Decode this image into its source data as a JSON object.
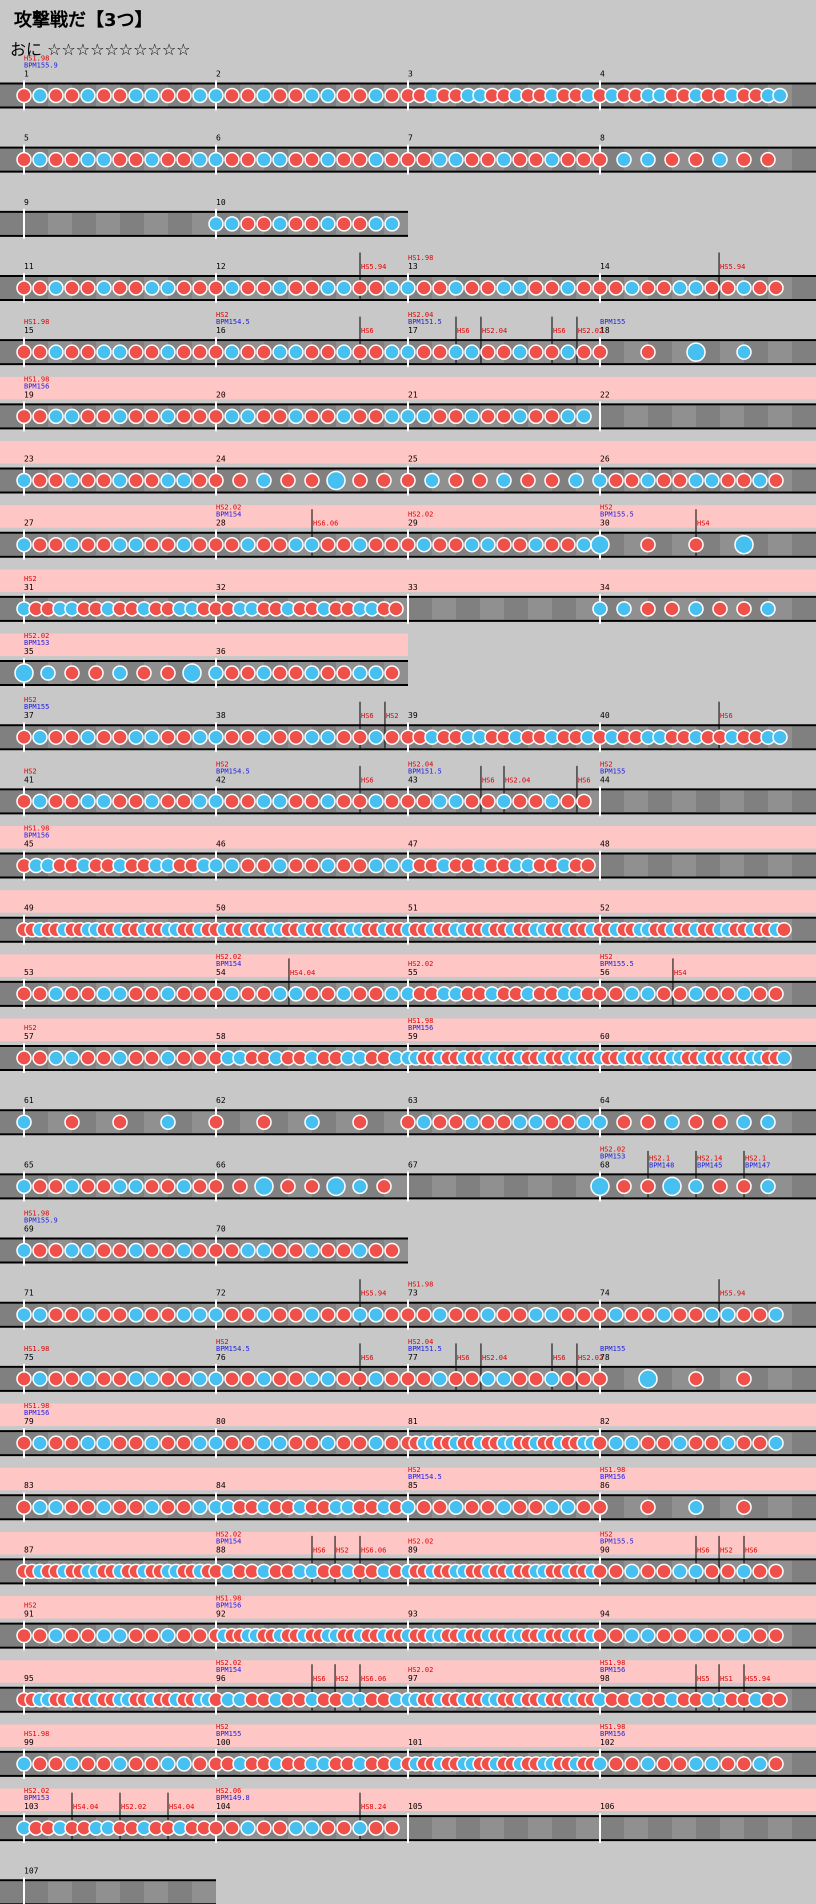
{
  "song": {
    "title": "攻撃戦だ【3つ】",
    "difficulty": "おに ☆☆☆☆☆☆☆☆☆☆"
  },
  "colors": {
    "background": "#c8c8c8",
    "lane": "#808080",
    "lane_cell": "#909090",
    "gogo": "#ffc6c6",
    "don": "#f0504a",
    "ka": "#46c0f0",
    "hs_text": "#e00000",
    "bpm_text": "#2020e0"
  },
  "rows": [
    {
      "bars": [
        1,
        2,
        3,
        4
      ],
      "gogo": false,
      "events": [
        {
          "bar": 1,
          "lines": [
            "HS1.98",
            "BPM155.9"
          ]
        }
      ],
      "dens": [
        6,
        6,
        8,
        8
      ]
    },
    {
      "bars": [
        5,
        6,
        7,
        8
      ],
      "gogo": false,
      "events": [],
      "dens": [
        6,
        7,
        7,
        5
      ]
    },
    {
      "bars": [
        9,
        10
      ],
      "gogo": false,
      "events": [],
      "dens": [
        0,
        6
      ]
    },
    {
      "bars": [
        11,
        12,
        13,
        14
      ],
      "gogo": false,
      "events": [
        {
          "bar": 12,
          "pos": 0.75,
          "lines": [
            "HS5.94"
          ]
        },
        {
          "bar": 13,
          "lines": [
            "HS1.98"
          ]
        },
        {
          "bar": 14,
          "pos": 0.62,
          "lines": [
            "HS5.94"
          ]
        }
      ],
      "dens": [
        6,
        6,
        6,
        6
      ]
    },
    {
      "bars": [
        15,
        16,
        17,
        18
      ],
      "gogo": false,
      "events": [
        {
          "bar": 15,
          "lines": [
            "HS1.98"
          ]
        },
        {
          "bar": 16,
          "lines": [
            "HS2",
            "BPM154.5"
          ]
        },
        {
          "bar": 16,
          "pos": 0.75,
          "lines": [
            "HS6"
          ]
        },
        {
          "bar": 17,
          "lines": [
            "HS2.04",
            "BPM151.5"
          ]
        },
        {
          "bar": 17,
          "pos": 0.25,
          "lines": [
            "HS6"
          ]
        },
        {
          "bar": 17,
          "pos": 0.38,
          "lines": [
            "HS2.04"
          ]
        },
        {
          "bar": 17,
          "pos": 0.75,
          "lines": [
            "HS6"
          ]
        },
        {
          "bar": 17,
          "pos": 0.88,
          "lines": [
            "HS2.02"
          ]
        },
        {
          "bar": 18,
          "lines": [
            "BPM155"
          ]
        }
      ],
      "dens": [
        6,
        6,
        6,
        1
      ]
    },
    {
      "bars": [
        19,
        20,
        21,
        22
      ],
      "gogo": true,
      "events": [
        {
          "bar": 19,
          "lines": [
            "HS1.98",
            "BPM156"
          ]
        }
      ],
      "dens": [
        6,
        6,
        6,
        0
      ]
    },
    {
      "bars": [
        23,
        24,
        25,
        26
      ],
      "gogo": true,
      "events": [],
      "dens": [
        6,
        4,
        5,
        6
      ]
    },
    {
      "bars": [
        27,
        28,
        29,
        30
      ],
      "gogo": true,
      "events": [
        {
          "bar": 28,
          "lines": [
            "HS2.02",
            "BPM154"
          ]
        },
        {
          "bar": 28,
          "pos": 0.5,
          "lines": [
            "HS6.06"
          ]
        },
        {
          "bar": 29,
          "lines": [
            "HS2.02"
          ]
        },
        {
          "bar": 30,
          "lines": [
            "HS2",
            "BPM155.5"
          ]
        },
        {
          "bar": 30,
          "pos": 0.5,
          "lines": [
            "HS4"
          ]
        }
      ],
      "dens": [
        6,
        6,
        6,
        3
      ]
    },
    {
      "bars": [
        31,
        32,
        33,
        34
      ],
      "gogo": true,
      "events": [
        {
          "bar": 31,
          "lines": [
            "HS2"
          ]
        }
      ],
      "dens": [
        8,
        8,
        0,
        5
      ]
    },
    {
      "bars": [
        35,
        36
      ],
      "gogo": true,
      "events": [
        {
          "bar": 35,
          "lines": [
            "HS2.02",
            "BPM153"
          ]
        }
      ],
      "dens": [
        4,
        6
      ]
    },
    {
      "bars": [
        37,
        38,
        39,
        40
      ],
      "gogo": false,
      "events": [
        {
          "bar": 37,
          "lines": [
            "HS2",
            "BPM155"
          ]
        },
        {
          "bar": 38,
          "pos": 0.75,
          "lines": [
            "HS6"
          ]
        },
        {
          "bar": 38,
          "pos": 0.88,
          "lines": [
            "HS2"
          ]
        },
        {
          "bar": 40,
          "pos": 0.62,
          "lines": [
            "HS6"
          ]
        }
      ],
      "dens": [
        6,
        6,
        8,
        8
      ]
    },
    {
      "bars": [
        41,
        42,
        43,
        44
      ],
      "gogo": false,
      "events": [
        {
          "bar": 41,
          "lines": [
            "HS2"
          ]
        },
        {
          "bar": 42,
          "lines": [
            "HS2",
            "BPM154.5"
          ]
        },
        {
          "bar": 42,
          "pos": 0.75,
          "lines": [
            "HS6"
          ]
        },
        {
          "bar": 43,
          "lines": [
            "HS2.04",
            "BPM151.5"
          ]
        },
        {
          "bar": 43,
          "pos": 0.38,
          "lines": [
            "HS6"
          ]
        },
        {
          "bar": 43,
          "pos": 0.5,
          "lines": [
            "HS2.04"
          ]
        },
        {
          "bar": 43,
          "pos": 0.88,
          "lines": [
            "HS6"
          ]
        },
        {
          "bar": 44,
          "lines": [
            "HS2",
            "BPM155"
          ]
        }
      ],
      "dens": [
        7,
        7,
        7,
        0
      ]
    },
    {
      "bars": [
        45,
        46,
        47,
        48
      ],
      "gogo": true,
      "events": [
        {
          "bar": 45,
          "lines": [
            "HS1.98",
            "BPM156"
          ]
        }
      ],
      "dens": [
        8,
        6,
        8,
        0
      ]
    },
    {
      "bars": [
        49,
        50,
        51,
        52
      ],
      "gogo": true,
      "events": [],
      "dens": [
        10,
        10,
        10,
        10
      ]
    },
    {
      "bars": [
        53,
        54,
        55,
        56
      ],
      "gogo": true,
      "events": [
        {
          "bar": 54,
          "lines": [
            "HS2.02",
            "BPM154"
          ]
        },
        {
          "bar": 54,
          "pos": 0.38,
          "lines": [
            "HS4.04"
          ]
        },
        {
          "bar": 55,
          "lines": [
            "HS2.02"
          ]
        },
        {
          "bar": 56,
          "lines": [
            "HS2",
            "BPM155.5"
          ]
        },
        {
          "bar": 56,
          "pos": 0.38,
          "lines": [
            "HS4"
          ]
        }
      ],
      "dens": [
        6,
        6,
        8,
        6
      ]
    },
    {
      "bars": [
        57,
        58,
        59,
        60
      ],
      "gogo": true,
      "events": [
        {
          "bar": 57,
          "lines": [
            "HS2"
          ]
        },
        {
          "bar": 59,
          "lines": [
            "HS1.98",
            "BPM156"
          ]
        }
      ],
      "dens": [
        6,
        8,
        10,
        10
      ]
    },
    {
      "bars": [
        61,
        62,
        63,
        64
      ],
      "gogo": false,
      "events": [],
      "dens": [
        2,
        3,
        6,
        5
      ]
    },
    {
      "bars": [
        65,
        66,
        67,
        68
      ],
      "gogo": false,
      "events": [
        {
          "bar": 68,
          "lines": [
            "HS2.02",
            "BPM153"
          ]
        },
        {
          "bar": 68,
          "pos": 0.25,
          "lines": [
            "HS2.1",
            "BPM148"
          ]
        },
        {
          "bar": 68,
          "pos": 0.5,
          "lines": [
            "HS2.14",
            "BPM145"
          ]
        },
        {
          "bar": 68,
          "pos": 0.75,
          "lines": [
            "HS2.1",
            "BPM147"
          ]
        }
      ],
      "dens": [
        6,
        4,
        0,
        4
      ]
    },
    {
      "bars": [
        69,
        70
      ],
      "gogo": false,
      "events": [
        {
          "bar": 69,
          "lines": [
            "HS1.98",
            "BPM155.9"
          ]
        }
      ],
      "dens": [
        6,
        6
      ]
    },
    {
      "bars": [
        71,
        72,
        73,
        74
      ],
      "gogo": false,
      "events": [
        {
          "bar": 72,
          "pos": 0.75,
          "lines": [
            "HS5.94"
          ]
        },
        {
          "bar": 73,
          "lines": [
            "HS1.98"
          ]
        },
        {
          "bar": 74,
          "pos": 0.62,
          "lines": [
            "HS5.94"
          ]
        }
      ],
      "dens": [
        6,
        7,
        7,
        7
      ]
    },
    {
      "bars": [
        75,
        76,
        77,
        78
      ],
      "gogo": false,
      "events": [
        {
          "bar": 75,
          "lines": [
            "HS1.98"
          ]
        },
        {
          "bar": 76,
          "lines": [
            "HS2",
            "BPM154.5"
          ]
        },
        {
          "bar": 76,
          "pos": 0.75,
          "lines": [
            "HS6"
          ]
        },
        {
          "bar": 77,
          "lines": [
            "HS2.04",
            "BPM151.5"
          ]
        },
        {
          "bar": 77,
          "pos": 0.25,
          "lines": [
            "HS6"
          ]
        },
        {
          "bar": 77,
          "pos": 0.38,
          "lines": [
            "HS2.04"
          ]
        },
        {
          "bar": 77,
          "pos": 0.75,
          "lines": [
            "HS6"
          ]
        },
        {
          "bar": 77,
          "pos": 0.88,
          "lines": [
            "HS2.02"
          ]
        },
        {
          "bar": 78,
          "lines": [
            "BPM155"
          ]
        }
      ],
      "dens": [
        6,
        6,
        6,
        2
      ]
    },
    {
      "bars": [
        79,
        80,
        81,
        82
      ],
      "gogo": true,
      "events": [
        {
          "bar": 79,
          "lines": [
            "HS1.98",
            "BPM156"
          ]
        }
      ],
      "dens": [
        6,
        6,
        10,
        6
      ]
    },
    {
      "bars": [
        83,
        84,
        85,
        86
      ],
      "gogo": true,
      "events": [
        {
          "bar": 85,
          "lines": [
            "HS2",
            "BPM154.5"
          ]
        },
        {
          "bar": 86,
          "lines": [
            "HS1.98",
            "BPM156"
          ]
        }
      ],
      "dens": [
        6,
        8,
        6,
        2
      ]
    },
    {
      "bars": [
        87,
        88,
        89,
        90
      ],
      "gogo": true,
      "events": [
        {
          "bar": 88,
          "lines": [
            "HS2.02",
            "BPM154"
          ]
        },
        {
          "bar": 88,
          "pos": 0.5,
          "lines": [
            "HS6"
          ]
        },
        {
          "bar": 88,
          "pos": 0.62,
          "lines": [
            "HS2"
          ]
        },
        {
          "bar": 88,
          "pos": 0.75,
          "lines": [
            "HS6.06"
          ]
        },
        {
          "bar": 89,
          "lines": [
            "HS2.02"
          ]
        },
        {
          "bar": 90,
          "lines": [
            "HS2",
            "BPM155.5"
          ]
        },
        {
          "bar": 90,
          "pos": 0.5,
          "lines": [
            "HS6"
          ]
        },
        {
          "bar": 90,
          "pos": 0.62,
          "lines": [
            "HS2"
          ]
        },
        {
          "bar": 90,
          "pos": 0.75,
          "lines": [
            "HS6"
          ]
        }
      ],
      "dens": [
        10,
        8,
        10,
        7
      ]
    },
    {
      "bars": [
        91,
        92,
        93,
        94
      ],
      "gogo": true,
      "events": [
        {
          "bar": 91,
          "lines": [
            "HS2"
          ]
        },
        {
          "bar": 92,
          "lines": [
            "HS1.98",
            "BPM156"
          ]
        }
      ],
      "dens": [
        6,
        10,
        10,
        6
      ]
    },
    {
      "bars": [
        95,
        96,
        97,
        98
      ],
      "gogo": true,
      "events": [
        {
          "bar": 96,
          "lines": [
            "HS2.02",
            "BPM154"
          ]
        },
        {
          "bar": 96,
          "pos": 0.5,
          "lines": [
            "HS6"
          ]
        },
        {
          "bar": 96,
          "pos": 0.62,
          "lines": [
            "HS2"
          ]
        },
        {
          "bar": 96,
          "pos": 0.75,
          "lines": [
            "HS6.06"
          ]
        },
        {
          "bar": 97,
          "lines": [
            "HS2.02"
          ]
        },
        {
          "bar": 98,
          "lines": [
            "HS1.98",
            "BPM156"
          ]
        },
        {
          "bar": 98,
          "pos": 0.5,
          "lines": [
            "HS5"
          ]
        },
        {
          "bar": 98,
          "pos": 0.62,
          "lines": [
            "HS1"
          ]
        },
        {
          "bar": 98,
          "pos": 0.75,
          "lines": [
            "HS5.94"
          ]
        }
      ],
      "dens": [
        10,
        8,
        10,
        8
      ]
    },
    {
      "bars": [
        99,
        100,
        101,
        102
      ],
      "gogo": true,
      "events": [
        {
          "bar": 99,
          "lines": [
            "HS1.98"
          ]
        },
        {
          "bar": 100,
          "lines": [
            "HS2",
            "BPM155"
          ]
        },
        {
          "bar": 102,
          "lines": [
            "HS1.98",
            "BPM156"
          ]
        }
      ],
      "dens": [
        6,
        8,
        10,
        6
      ]
    },
    {
      "bars": [
        103,
        104,
        105,
        106
      ],
      "gogo": true,
      "events": [
        {
          "bar": 103,
          "lines": [
            "HS2.02",
            "BPM153"
          ]
        },
        {
          "bar": 103,
          "pos": 0.25,
          "lines": [
            "HS4.04"
          ]
        },
        {
          "bar": 103,
          "pos": 0.5,
          "lines": [
            "HS2.02"
          ]
        },
        {
          "bar": 103,
          "pos": 0.75,
          "lines": [
            "HS4.04"
          ]
        },
        {
          "bar": 104,
          "lines": [
            "HS2.06",
            "BPM149.8"
          ]
        },
        {
          "bar": 104,
          "pos": 0.75,
          "lines": [
            "HS8.24"
          ]
        }
      ],
      "dens": [
        8,
        6,
        0,
        0
      ]
    },
    {
      "bars": [
        107
      ],
      "gogo": false,
      "events": [],
      "dens": [
        0
      ]
    }
  ]
}
